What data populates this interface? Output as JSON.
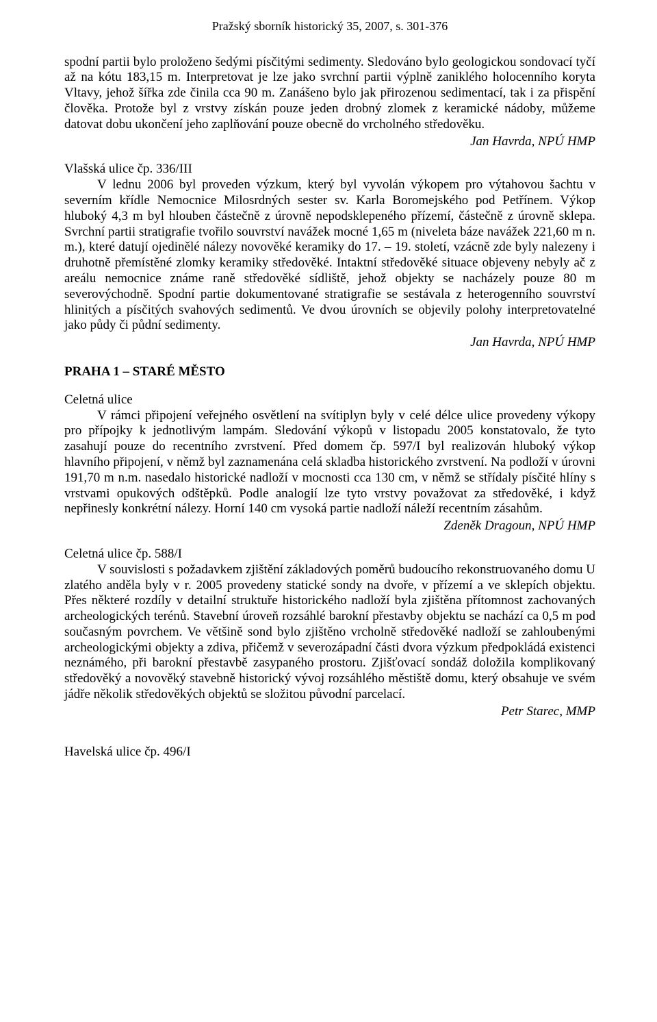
{
  "header": {
    "text": "Pražský sborník historický 35, 2007, s. 301-376"
  },
  "p1": {
    "text": "spodní partii bylo   proloženo šedými písčitými sedimenty. Sledováno bylo geologickou sondovací tyčí až na kótu 183,15 m. Interpretovat je lze  jako svrchní partii výplně zaniklého holocenního koryta Vltavy, jehož šířka zde činila cca 90 m. Zanášeno bylo jak přirozenou sedimentací, tak i za přispění člověka. Protože byl z vrstvy získán pouze jeden drobný zlomek z keramické nádoby, můžeme datovat dobu ukončení jeho zaplňování pouze obecně do vrcholného středověku."
  },
  "sig1": {
    "text": "Jan Havrda, NPÚ HMP"
  },
  "p2": {
    "title": "Vlašská ulice čp. 336/III",
    "text": "V lednu 2006 byl proveden výzkum, který byl vyvolán výkopem pro výtahovou šachtu v severním křídle Nemocnice Milosrdných sester sv. Karla Boromejského pod Petřínem. Výkop hluboký 4,3 m byl hlouben částečně z úrovně nepodsklepeného přízemí, částečně z úrovně sklepa. Svrchní partii stratigrafie tvořilo souvrství navážek mocné 1,65 m (niveleta báze navážek 221,60 m n. m.), které datují ojedinělé nálezy novověké keramiky do 17. – 19. století, vzácně zde byly nalezeny i druhotně přemístěné zlomky keramiky středověké. Intaktní středověké situace objeveny nebyly ač z areálu nemocnice známe raně středověké sídliště, jehož objekty se nacházely pouze 80 m severovýchodně. Spodní partie dokumentované stratigrafie se sestávala z heterogenního souvrství hlinitých a písčitých svahových sedimentů. Ve dvou úrovních se objevily polohy interpretovatelné jako půdy či půdní sedimenty."
  },
  "sig2": {
    "text": "Jan Havrda, NPÚ HMP"
  },
  "heading1": {
    "text": "PRAHA 1 – STARÉ  MĚSTO"
  },
  "p3": {
    "title": "Celetná ulice",
    "text": "V rámci připojení veřejného osvětlení na svítiplyn byly v celé délce ulice provedeny výkopy pro přípojky k jednotlivým lampám. Sledování výkopů v listopadu 2005 konstatovalo, že tyto zasahují pouze do recentního zvrstvení.  Před domem čp. 597/I byl realizován hluboký výkop hlavního připojení, v němž byl zaznamenána celá skladba historického zvrstvení. Na podloží v úrovni 191,70 m n.m. nasedalo historické nadloží v mocnosti cca 130 cm, v němž se střídaly písčité hlíny s vrstvami opukových odštěpků. Podle analogií lze tyto vrstvy považovat za středověké, i když nepřinesly konkrétní nálezy. Horní 140 cm vysoká partie nadloží náleží recentním zásahům."
  },
  "sig3": {
    "text": "Zdeněk Dragoun, NPÚ HMP"
  },
  "p4": {
    "title": "Celetná ulice čp. 588/I",
    "text": "V souvislosti s požadavkem zjištění základových poměrů budoucího rekonstruovaného domu U zlatého anděla byly v r. 2005 provedeny statické sondy na dvoře,  v přízemí a ve sklepích objektu. Přes některé rozdíly v detailní struktuře historického nadloží byla zjištěna přítomnost zachovaných archeologických terénů. Stavební úroveň rozsáhlé barokní přestavby objektu se nachází ca 0,5 m pod současným povrchem.  Ve většině sond bylo zjištěno vrcholně středověké nadloží se zahloubenými archeologickými objekty a zdiva, přičemž v severozápadní části dvora výzkum předpokládá existenci neznámého, při barokní přestavbě zasypaného prostoru. Zjišťovací sondáž doložila komplikovaný středověký a novověký stavebně historický vývoj rozsáhlého městiště  domu, který obsahuje ve svém jádře několik středověkých objektů se složitou původní parcelací."
  },
  "sig4": {
    "text": "Petr Starec, MMP"
  },
  "p5": {
    "title": "Havelská  ulice čp. 496/I"
  }
}
